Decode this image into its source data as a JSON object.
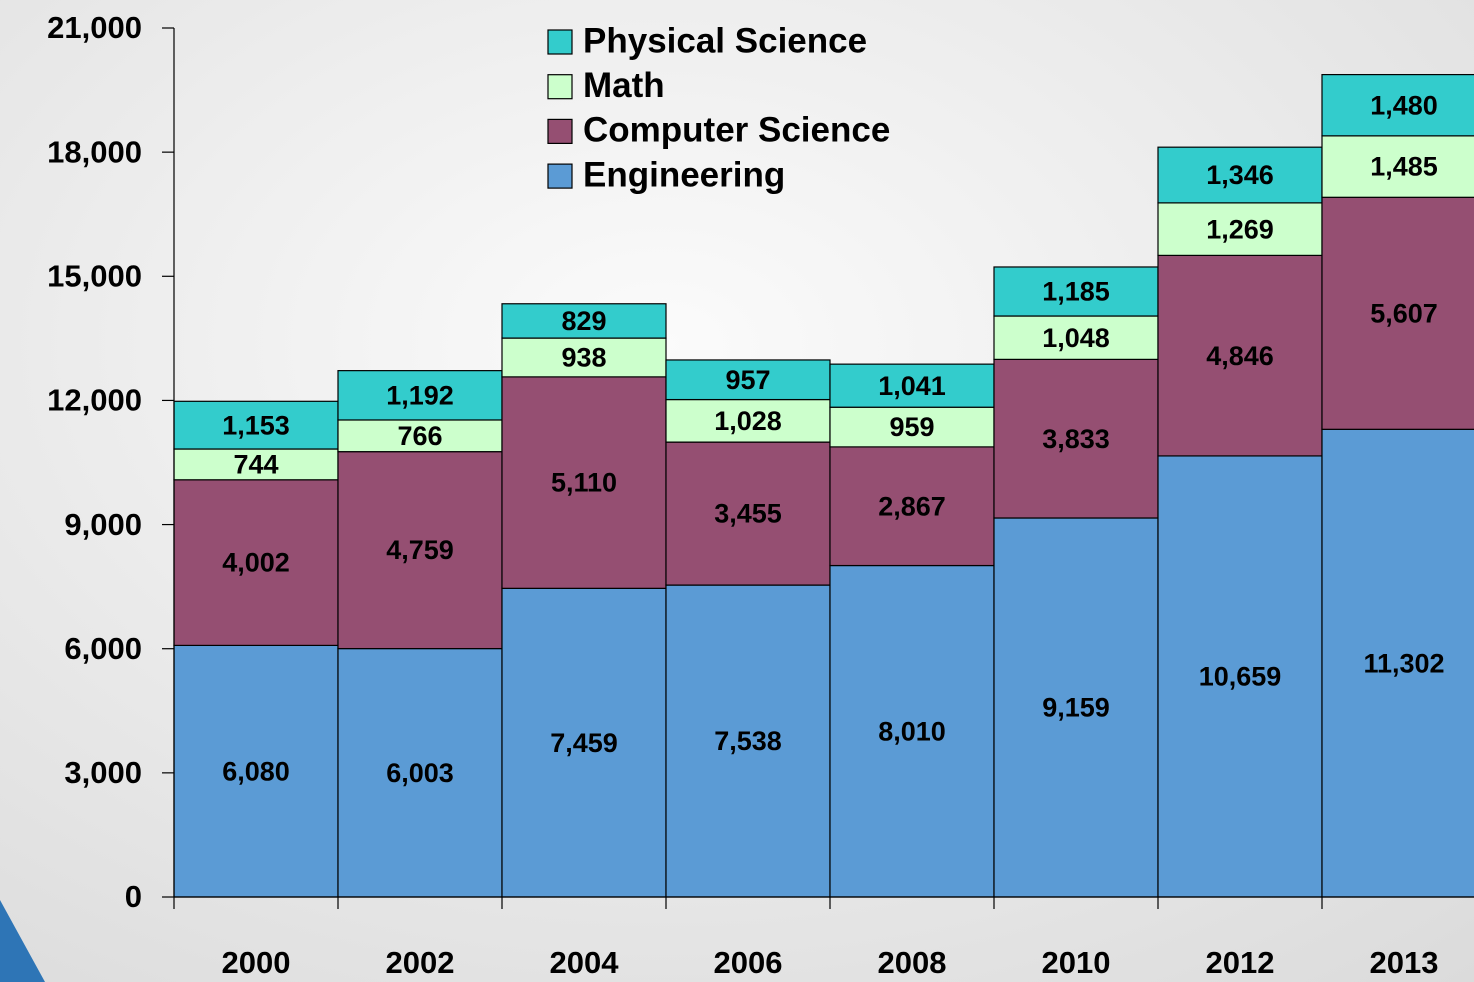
{
  "chart_data": {
    "type": "stacked_bar",
    "categories": [
      "2000",
      "2002",
      "2004",
      "2006",
      "2008",
      "2010",
      "2012",
      "2013"
    ],
    "series": [
      {
        "name": "Engineering",
        "color": "#5b9bd5",
        "values": [
          6080,
          6003,
          7459,
          7538,
          8010,
          9159,
          10659,
          11302
        ],
        "value_labels": [
          "6,080",
          "6,003",
          "7,459",
          "7,538",
          "8,010",
          "9,159",
          "10,659",
          "11,302"
        ]
      },
      {
        "name": "Computer Science",
        "color": "#954f72",
        "values": [
          4002,
          4759,
          5110,
          3455,
          2867,
          3833,
          4846,
          5607
        ],
        "value_labels": [
          "4,002",
          "4,759",
          "5,110",
          "3,455",
          "2,867",
          "3,833",
          "4,846",
          "5,607"
        ]
      },
      {
        "name": "Math",
        "color": "#ccffcc",
        "values": [
          744,
          766,
          938,
          1028,
          959,
          1048,
          1269,
          1485
        ],
        "value_labels": [
          "744",
          "766",
          "938",
          "1,028",
          "959",
          "1,048",
          "1,269",
          "1,485"
        ]
      },
      {
        "name": "Physical Science",
        "color": "#33cccc",
        "values": [
          1153,
          1192,
          829,
          957,
          1041,
          1185,
          1346,
          1480
        ],
        "value_labels": [
          "1,153",
          "1,192",
          "829",
          "957",
          "1,041",
          "1,185",
          "1,346",
          "1,480"
        ]
      }
    ],
    "ylim": [
      0,
      21000
    ],
    "yticks": [
      0,
      {
        "value": 3000,
        "label": "3,000"
      },
      {
        "value": 6000,
        "label": "6,000"
      },
      {
        "value": 9000,
        "label": "9,000"
      },
      {
        "value": 12000,
        "label": "12,000"
      },
      {
        "value": 15000,
        "label": "15,000"
      },
      {
        "value": 18000,
        "label": "18,000"
      },
      {
        "value": 21000,
        "label": "21,000"
      }
    ],
    "legend": "top-center"
  }
}
